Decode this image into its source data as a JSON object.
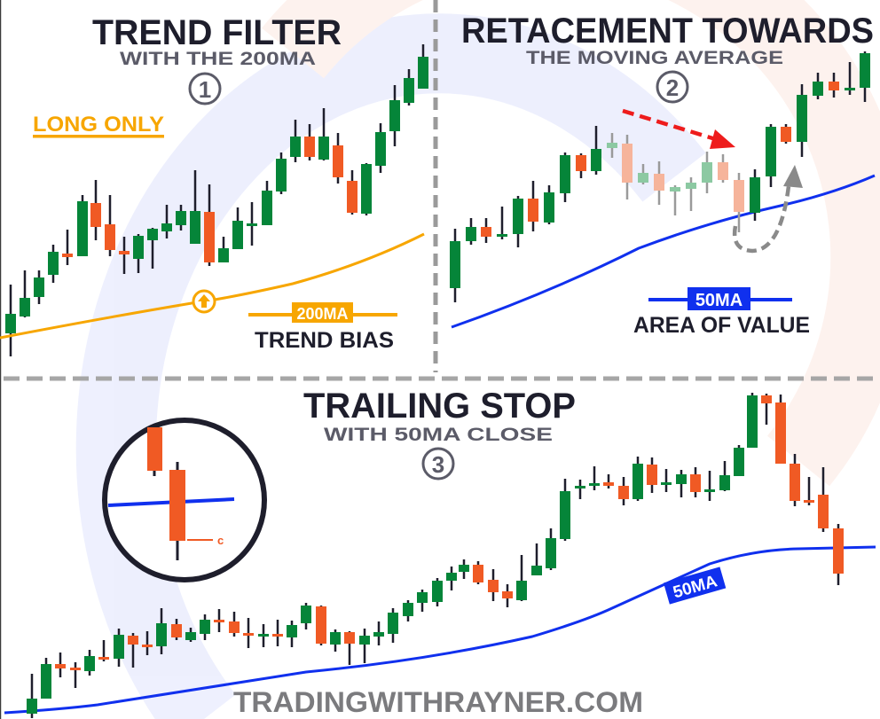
{
  "panels": [
    {
      "title": "TREND FILTER",
      "subtitle": "WITH THE 200MA",
      "number": "1",
      "tag": "LONG ONLY",
      "ma_badge": "200MA",
      "ma_caption": "TREND BIAS"
    },
    {
      "title": "RETACEMENT TOWARDS",
      "subtitle": "THE MOVING AVERAGE",
      "number": "2",
      "ma_badge": "50MA",
      "ma_caption": "AREA OF VALUE"
    },
    {
      "title": "TRAILING STOP",
      "subtitle": "WITH 50MA CLOSE",
      "number": "3",
      "ma_badge": "50MA",
      "close_marker": "c"
    }
  ],
  "footer": "TRADINGWITHRAYNER.COM",
  "colors": {
    "bull": "#058539",
    "bear": "#f05a24",
    "bull_faded": "#8cc9a2",
    "bear_faded": "#f6b49b",
    "ma200": "#f7a600",
    "ma50": "#1030ee",
    "pullback_arrow": "#ee1c1c",
    "bounce_arrow": "#8a8a8a",
    "title": "#1e1e2c",
    "subtitle": "#5b5b68"
  }
}
